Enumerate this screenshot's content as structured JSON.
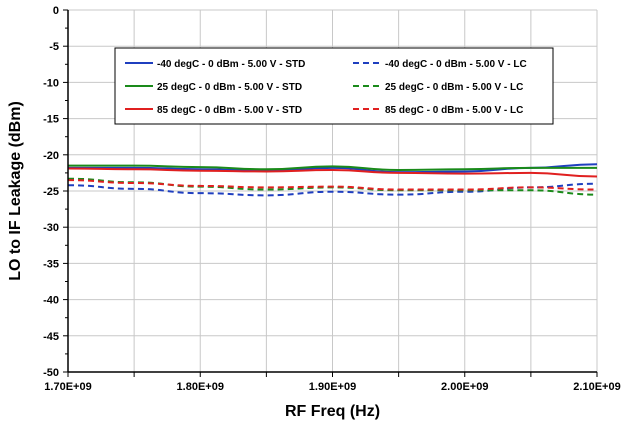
{
  "chart_data": {
    "type": "line",
    "title": "",
    "xlabel": "RF Freq (Hz)",
    "ylabel": "LO to IF Leakage (dBm)",
    "xlim": [
      1700000000,
      2100000000
    ],
    "ylim": [
      -50,
      0
    ],
    "x_ticks": [
      1700000000,
      1800000000,
      1900000000,
      2000000000,
      2100000000
    ],
    "x_tick_labels": [
      "1.70E+09",
      "1.80E+09",
      "1.90E+09",
      "2.00E+09",
      "2.10E+09"
    ],
    "y_ticks": [
      0,
      -5,
      -10,
      -15,
      -20,
      -25,
      -30,
      -35,
      -40,
      -45,
      -50
    ],
    "y_tick_labels": [
      "0",
      "-5",
      "-10",
      "-15",
      "-20",
      "-25",
      "-30",
      "-35",
      "-40",
      "-45",
      "-50"
    ],
    "grid": true,
    "legend_position": "top-center",
    "x": [
      1700000000,
      1750000000,
      1800000000,
      1850000000,
      1900000000,
      1950000000,
      2000000000,
      2050000000,
      2100000000
    ],
    "series": [
      {
        "name": "-40 degC - 0 dBm - 5.00 V - STD",
        "color": "#1f3fbf",
        "dash": "solid",
        "values": [
          -21.8,
          -21.8,
          -22.0,
          -22.2,
          -21.8,
          -22.4,
          -22.3,
          -21.8,
          -21.3
        ]
      },
      {
        "name": "-40 degC - 0 dBm - 5.00 V - LC",
        "color": "#1f3fbf",
        "dash": "dashed",
        "values": [
          -24.2,
          -24.7,
          -25.3,
          -25.6,
          -25.1,
          -25.5,
          -25.1,
          -24.5,
          -24.0
        ]
      },
      {
        "name": "25 degC - 0 dBm - 5.00 V - STD",
        "color": "#1a8a1a",
        "dash": "solid",
        "values": [
          -21.5,
          -21.5,
          -21.7,
          -22.0,
          -21.6,
          -22.1,
          -22.0,
          -21.8,
          -21.8
        ]
      },
      {
        "name": "25 degC - 0 dBm - 5.00 V - LC",
        "color": "#1a8a1a",
        "dash": "dashed",
        "values": [
          -23.3,
          -23.8,
          -24.4,
          -24.8,
          -24.5,
          -24.9,
          -24.9,
          -24.9,
          -25.5
        ]
      },
      {
        "name": "85 degC - 0 dBm - 5.00 V - STD",
        "color": "#e02020",
        "dash": "solid",
        "values": [
          -21.9,
          -22.0,
          -22.2,
          -22.3,
          -22.1,
          -22.5,
          -22.6,
          -22.5,
          -23.0
        ]
      },
      {
        "name": "85 degC - 0 dBm - 5.00 V - LC",
        "color": "#e02020",
        "dash": "dashed",
        "values": [
          -23.5,
          -23.9,
          -24.3,
          -24.5,
          -24.4,
          -24.8,
          -24.8,
          -24.5,
          -24.8
        ]
      }
    ]
  }
}
